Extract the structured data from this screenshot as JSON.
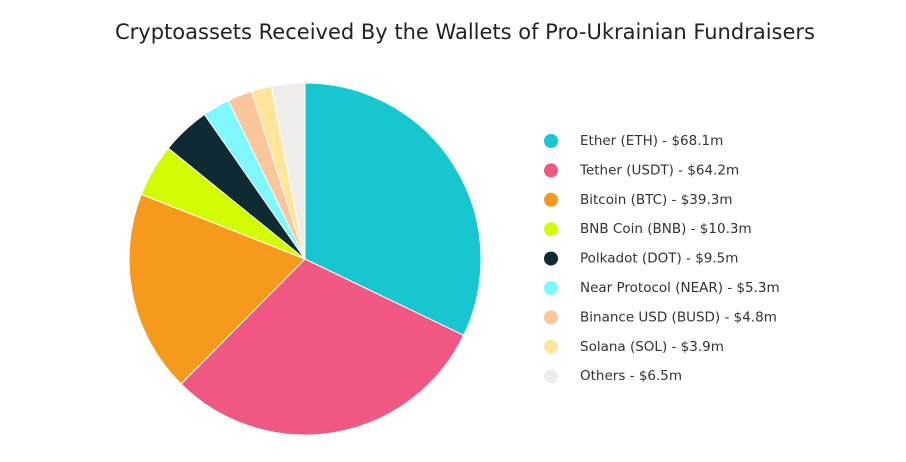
{
  "chart_data": {
    "type": "pie",
    "title": "Cryptoassets Received By the Wallets of Pro-Ukrainian Fundraisers",
    "categories": [
      "Ether (ETH) - $68.1m",
      "Tether (USDT) - $64.2m",
      "Bitcoin (BTC) - $39.3m",
      "BNB Coin (BNB) - $10.3m",
      "Polkadot (DOT) - $9.5m",
      "Near Protocol (NEAR) - $5.3m",
      "Binance USD (BUSD) - $4.8m",
      "Solana (SOL) - $3.9m",
      "Others - $6.5m"
    ],
    "values": [
      68.1,
      64.2,
      39.3,
      10.3,
      9.5,
      5.3,
      4.8,
      3.9,
      6.5
    ],
    "colors": [
      "#17c6cf",
      "#f05883",
      "#f7991c",
      "#d3fb03",
      "#0e2a33",
      "#7ff9ff",
      "#fbc79a",
      "#fde59c",
      "#efedea"
    ]
  }
}
